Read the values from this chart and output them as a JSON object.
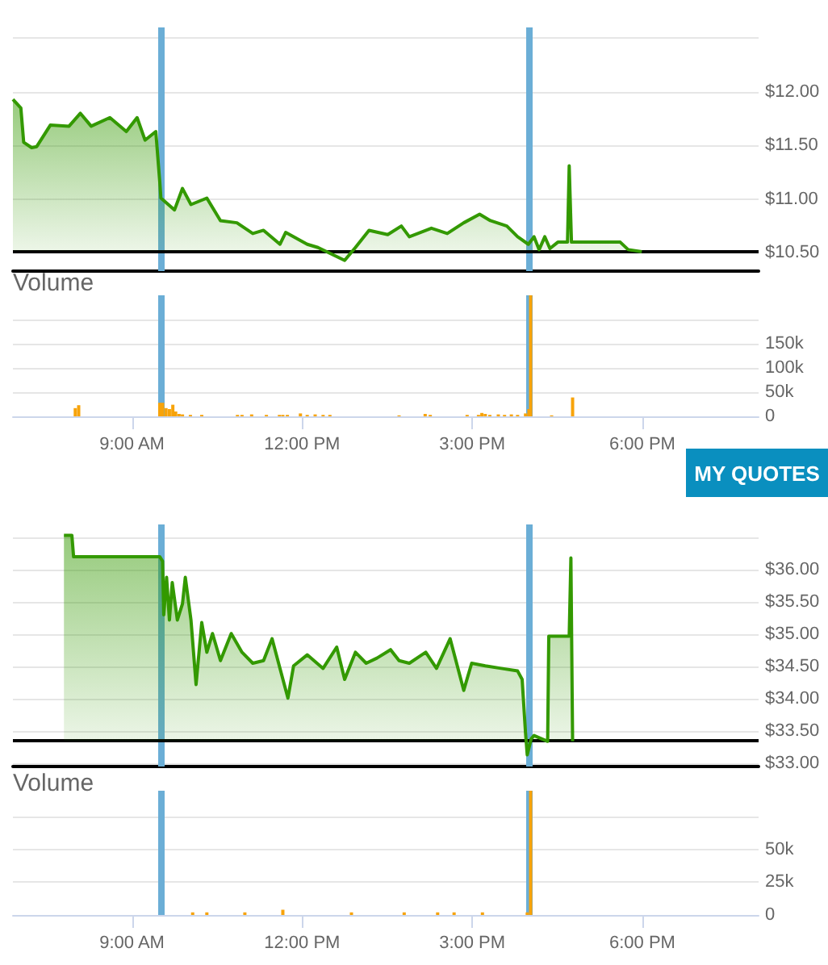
{
  "chart_data": [
    {
      "type": "area",
      "xlim": [
        6.9,
        20.05
      ],
      "ylim": [
        10.33,
        12.6
      ],
      "tick_labels": "y",
      "grid": "y",
      "yticks": [
        {
          "value": 10.5,
          "label": "$10.50"
        },
        {
          "value": 11,
          "label": "$11.00"
        },
        {
          "value": 11.5,
          "label": "$11.50"
        },
        {
          "value": 12,
          "label": "$12.00"
        },
        {
          "value": 12.5,
          "label": null
        }
      ],
      "series": [
        {
          "color": "#339900",
          "x": [
            6.9,
            7.04,
            7.09,
            7.23,
            7.32,
            7.56,
            7.89,
            8.09,
            8.28,
            8.61,
            8.9,
            9.09,
            9.23,
            9.42,
            9.49,
            9.51,
            9.75,
            9.89,
            10.04,
            10.32,
            10.56,
            10.85,
            11.13,
            11.32,
            11.61,
            11.71,
            12.09,
            12.28,
            12.75,
            12.94,
            13.18,
            13.51,
            13.75,
            13.89,
            14.28,
            14.56,
            14.85,
            15.13,
            15.32,
            15.61,
            15.8,
            15.99,
            16.09,
            16.18,
            16.28,
            16.37,
            16.51,
            16.68,
            16.71,
            16.75,
            17.61,
            17.75,
            17.99
          ],
          "values": [
            11.93,
            11.85,
            11.53,
            11.48,
            11.49,
            11.69,
            11.68,
            11.8,
            11.68,
            11.76,
            11.63,
            11.76,
            11.55,
            11.63,
            11.16,
            11.01,
            10.9,
            11.1,
            10.95,
            11.01,
            10.8,
            10.78,
            10.68,
            10.71,
            10.58,
            10.69,
            10.58,
            10.55,
            10.43,
            10.55,
            10.71,
            10.67,
            10.75,
            10.65,
            10.73,
            10.68,
            10.78,
            10.86,
            10.8,
            10.75,
            10.65,
            10.58,
            10.65,
            10.53,
            10.65,
            10.54,
            10.6,
            10.6,
            11.31,
            10.6,
            10.6,
            10.53,
            10.51
          ]
        }
      ],
      "ref_lines": [
        {
          "axis": "x",
          "value": 9.5,
          "color": "#6baed6"
        },
        {
          "axis": "x",
          "value": 16,
          "color": "#6baed6"
        },
        {
          "axis": "y",
          "value": 10.52,
          "color": "#000000"
        }
      ]
    },
    {
      "type": "bar",
      "title": "Volume",
      "xlim": [
        6.9,
        20.05
      ],
      "ylim": [
        0,
        250000
      ],
      "grid": "y",
      "xticks": [
        {
          "value": 9,
          "label": "9:00 AM"
        },
        {
          "value": 12,
          "label": "12:00 PM"
        },
        {
          "value": 15,
          "label": "3:00 PM"
        },
        {
          "value": 18,
          "label": "6:00 PM"
        }
      ],
      "yticks": [
        {
          "value": 0,
          "label": "0"
        },
        {
          "value": 50000,
          "label": "50k"
        },
        {
          "value": 100000,
          "label": "100k"
        },
        {
          "value": 150000,
          "label": "150k"
        },
        {
          "value": 200000,
          "label": null
        }
      ],
      "series": [
        {
          "color": "#f7a30a",
          "x": [
            8.0,
            8.06,
            9.49,
            9.54,
            9.6,
            9.66,
            9.72,
            9.77,
            9.83,
            9.89,
            10.03,
            10.23,
            10.86,
            10.94,
            11.11,
            11.37,
            11.6,
            11.66,
            11.74,
            11.97,
            12.09,
            12.23,
            12.37,
            12.49,
            13.71,
            14.17,
            14.26,
            14.91,
            15.11,
            15.17,
            15.23,
            15.31,
            15.46,
            15.57,
            15.69,
            15.8,
            15.94,
            16.0,
            16.03,
            16.4,
            16.77
          ],
          "values": [
            17000,
            23000,
            28000,
            28000,
            17000,
            15000,
            24000,
            10000,
            5000,
            4000,
            3000,
            3000,
            3000,
            3000,
            4000,
            3000,
            3000,
            3000,
            3000,
            6000,
            3000,
            4000,
            3000,
            3000,
            2000,
            5000,
            3000,
            3000,
            3000,
            7000,
            5000,
            3000,
            4000,
            3000,
            4000,
            3000,
            6000,
            15000,
            250000,
            2000,
            39000
          ]
        }
      ],
      "ref_lines": [
        {
          "axis": "x",
          "value": 9.5,
          "color": "#6baed6"
        },
        {
          "axis": "x",
          "value": 16,
          "color": "#6baed6"
        }
      ],
      "annotations": [
        "MY QUOTES"
      ]
    },
    {
      "type": "area",
      "xlim": [
        6.9,
        20.05
      ],
      "ylim": [
        32.95,
        36.7
      ],
      "tick_labels": "y",
      "grid": "y",
      "yticks": [
        {
          "value": 33,
          "label": "$33.00"
        },
        {
          "value": 33.5,
          "label": "$33.50"
        },
        {
          "value": 34,
          "label": "$34.00"
        },
        {
          "value": 34.5,
          "label": "$34.50"
        },
        {
          "value": 35,
          "label": "$35.00"
        },
        {
          "value": 35.5,
          "label": "$35.50"
        },
        {
          "value": 36,
          "label": "$36.00"
        },
        {
          "value": 36.5,
          "label": null
        }
      ],
      "series": [
        {
          "color": "#339900",
          "x": [
            7.8,
            7.94,
            7.97,
            9.49,
            9.54,
            9.56,
            9.61,
            9.66,
            9.71,
            9.8,
            9.89,
            9.94,
            10.04,
            10.13,
            10.23,
            10.32,
            10.42,
            10.56,
            10.75,
            10.94,
            11.13,
            11.32,
            11.47,
            11.61,
            11.75,
            11.85,
            12.09,
            12.37,
            12.61,
            12.75,
            12.94,
            13.13,
            13.32,
            13.56,
            13.71,
            13.89,
            14.18,
            14.37,
            14.61,
            14.85,
            14.99,
            15.23,
            15.51,
            15.8,
            15.88,
            15.94,
            15.97,
            16.04,
            16.09,
            16.33,
            16.35,
            16.71,
            16.74,
            16.77
          ],
          "values": [
            36.53,
            36.53,
            36.2,
            36.2,
            36.13,
            35.3,
            35.88,
            35.22,
            35.8,
            35.22,
            35.47,
            35.88,
            35.22,
            34.22,
            35.18,
            34.72,
            35.01,
            34.59,
            35.01,
            34.72,
            34.55,
            34.59,
            34.93,
            34.47,
            34.01,
            34.51,
            34.68,
            34.47,
            34.8,
            34.3,
            34.72,
            34.55,
            34.63,
            34.76,
            34.59,
            34.55,
            34.72,
            34.47,
            34.93,
            34.13,
            34.55,
            34.51,
            34.47,
            34.43,
            34.3,
            33.47,
            33.13,
            33.38,
            33.43,
            33.34,
            34.97,
            34.97,
            36.18,
            33.34
          ]
        }
      ],
      "ref_lines": [
        {
          "axis": "x",
          "value": 9.5,
          "color": "#6baed6"
        },
        {
          "axis": "x",
          "value": 16,
          "color": "#6baed6"
        },
        {
          "axis": "y",
          "value": 33.35,
          "color": "#000000"
        }
      ]
    },
    {
      "type": "bar",
      "title": "Volume",
      "xlim": [
        6.9,
        20.05
      ],
      "ylim": [
        0,
        95000
      ],
      "grid": "y",
      "xticks": [
        {
          "value": 9,
          "label": "9:00 AM"
        },
        {
          "value": 12,
          "label": "12:00 PM"
        },
        {
          "value": 15,
          "label": "3:00 PM"
        },
        {
          "value": 18,
          "label": "6:00 PM"
        }
      ],
      "yticks": [
        {
          "value": 0,
          "label": "0"
        },
        {
          "value": 25000,
          "label": "25k"
        },
        {
          "value": 50000,
          "label": "50k"
        },
        {
          "value": 75000,
          "label": null
        }
      ],
      "series": [
        {
          "color": "#f7a30a",
          "x": [
            10.07,
            10.32,
            10.99,
            11.66,
            12.87,
            13.8,
            14.39,
            14.68,
            15.18,
            15.97,
            16.03
          ],
          "values": [
            2000,
            2000,
            2000,
            4000,
            2000,
            2000,
            2000,
            2000,
            2000,
            2000,
            95000
          ]
        }
      ],
      "ref_lines": [
        {
          "axis": "x",
          "value": 9.5,
          "color": "#6baed6"
        },
        {
          "axis": "x",
          "value": 16,
          "color": "#6baed6"
        }
      ]
    }
  ]
}
